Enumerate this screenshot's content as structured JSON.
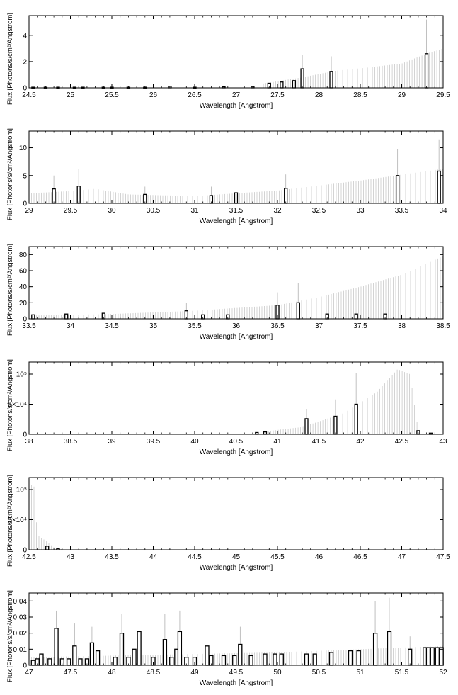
{
  "chart_data": [
    {
      "type": "bar",
      "xlabel": "Wavelength [Angstrom]",
      "ylabel": "Flux [Photons/s/cm²/Angstrom]",
      "xlim": [
        24.5,
        29.5
      ],
      "ylim": [
        0,
        5.5
      ],
      "xticks": [
        24.5,
        25,
        25.5,
        26,
        26.5,
        27,
        27.5,
        28,
        28.5,
        29,
        29.5
      ],
      "xtick_labels": [
        "24.5",
        "25",
        "25.5",
        "26",
        "26.5",
        "27",
        "27.5",
        "28",
        "28.5",
        "29",
        "29.5"
      ],
      "yticks": [
        0,
        2,
        4
      ],
      "ytick_labels": [
        "0",
        "2",
        "4"
      ],
      "bars": [
        {
          "x": 24.55,
          "y": 0.05
        },
        {
          "x": 24.7,
          "y": 0.05
        },
        {
          "x": 24.85,
          "y": 0.05
        },
        {
          "x": 25.05,
          "y": 0.05
        },
        {
          "x": 25.15,
          "y": 0.05
        },
        {
          "x": 25.4,
          "y": 0.05
        },
        {
          "x": 25.5,
          "y": 0.05
        },
        {
          "x": 25.7,
          "y": 0.05
        },
        {
          "x": 25.9,
          "y": 0.05
        },
        {
          "x": 26.2,
          "y": 0.12
        },
        {
          "x": 26.5,
          "y": 0.05
        },
        {
          "x": 26.85,
          "y": 0.08
        },
        {
          "x": 27.2,
          "y": 0.1
        },
        {
          "x": 27.4,
          "y": 0.35
        },
        {
          "x": 27.55,
          "y": 0.45
        },
        {
          "x": 27.7,
          "y": 0.55
        },
        {
          "x": 27.8,
          "y": 1.45
        },
        {
          "x": 28.15,
          "y": 1.25
        },
        {
          "x": 29.3,
          "y": 2.6
        }
      ],
      "band": [
        {
          "x": 27.3,
          "y": 0.3
        },
        {
          "x": 27.8,
          "y": 0.8
        },
        {
          "x": 28.2,
          "y": 1.3
        },
        {
          "x": 28.6,
          "y": 1.55
        },
        {
          "x": 29.0,
          "y": 1.85
        },
        {
          "x": 29.3,
          "y": 2.6
        },
        {
          "x": 29.5,
          "y": 3.0
        }
      ],
      "errors": [
        {
          "x": 27.8,
          "y": 2.5
        },
        {
          "x": 28.15,
          "y": 2.4
        },
        {
          "x": 29.3,
          "y": 5.2
        }
      ]
    },
    {
      "type": "bar",
      "xlabel": "Wavelength [Angstrom]",
      "ylabel": "Flux [Photons/s/cm²/Angstrom]",
      "xlim": [
        29,
        34
      ],
      "ylim": [
        0,
        13
      ],
      "xticks": [
        29,
        29.5,
        30,
        30.5,
        31,
        31.5,
        32,
        32.5,
        33,
        33.5,
        34
      ],
      "xtick_labels": [
        "29",
        "29.5",
        "30",
        "30.5",
        "31",
        "31.5",
        "32",
        "32.5",
        "33",
        "33.5",
        "34"
      ],
      "yticks": [
        0,
        5,
        10
      ],
      "ytick_labels": [
        "0",
        "5",
        "10"
      ],
      "bars": [
        {
          "x": 29.3,
          "y": 2.6
        },
        {
          "x": 29.6,
          "y": 3.1
        },
        {
          "x": 30.4,
          "y": 1.6
        },
        {
          "x": 31.2,
          "y": 1.4
        },
        {
          "x": 31.5,
          "y": 1.9
        },
        {
          "x": 32.1,
          "y": 2.7
        },
        {
          "x": 33.45,
          "y": 5.0
        },
        {
          "x": 33.95,
          "y": 5.8
        }
      ],
      "band": [
        {
          "x": 29.0,
          "y": 1.8
        },
        {
          "x": 29.5,
          "y": 2.2
        },
        {
          "x": 29.8,
          "y": 2.6
        },
        {
          "x": 30.2,
          "y": 1.6
        },
        {
          "x": 31.0,
          "y": 1.3
        },
        {
          "x": 32.0,
          "y": 2.3
        },
        {
          "x": 33.0,
          "y": 4.1
        },
        {
          "x": 34.0,
          "y": 6.2
        }
      ],
      "errors": [
        {
          "x": 29.3,
          "y": 5.0
        },
        {
          "x": 29.6,
          "y": 6.2
        },
        {
          "x": 30.4,
          "y": 3.0
        },
        {
          "x": 31.2,
          "y": 3.0
        },
        {
          "x": 31.5,
          "y": 3.6
        },
        {
          "x": 32.1,
          "y": 5.2
        },
        {
          "x": 33.45,
          "y": 9.8
        },
        {
          "x": 33.95,
          "y": 11.5
        }
      ]
    },
    {
      "type": "bar",
      "xlabel": "Wavelength [Angstrom]",
      "ylabel": "Flux [Photons/s/cm²/Angstrom]",
      "xlim": [
        33.5,
        38.5
      ],
      "ylim": [
        0,
        90
      ],
      "xticks": [
        33.5,
        34,
        34.5,
        35,
        35.5,
        36,
        36.5,
        37,
        37.5,
        38,
        38.5
      ],
      "xtick_labels": [
        "33.5",
        "34",
        "34.5",
        "35",
        "35.5",
        "36",
        "36.5",
        "37",
        "37.5",
        "38",
        "38.5"
      ],
      "yticks": [
        0,
        20,
        40,
        60,
        80
      ],
      "ytick_labels": [
        "0",
        "20",
        "40",
        "60",
        "80"
      ],
      "bars": [
        {
          "x": 33.55,
          "y": 5
        },
        {
          "x": 33.95,
          "y": 6
        },
        {
          "x": 34.4,
          "y": 7
        },
        {
          "x": 35.4,
          "y": 10
        },
        {
          "x": 35.6,
          "y": 5
        },
        {
          "x": 35.9,
          "y": 5
        },
        {
          "x": 36.5,
          "y": 17
        },
        {
          "x": 36.75,
          "y": 20
        },
        {
          "x": 37.1,
          "y": 6
        },
        {
          "x": 37.45,
          "y": 6
        },
        {
          "x": 37.8,
          "y": 6
        }
      ],
      "band": [
        {
          "x": 33.5,
          "y": 4
        },
        {
          "x": 34.5,
          "y": 6
        },
        {
          "x": 35.5,
          "y": 10
        },
        {
          "x": 36.5,
          "y": 17
        },
        {
          "x": 37.0,
          "y": 27
        },
        {
          "x": 37.5,
          "y": 40
        },
        {
          "x": 38.0,
          "y": 55
        },
        {
          "x": 38.5,
          "y": 78
        }
      ],
      "errors": [
        {
          "x": 35.4,
          "y": 20
        },
        {
          "x": 36.5,
          "y": 33
        },
        {
          "x": 36.75,
          "y": 45
        }
      ]
    },
    {
      "type": "bar",
      "xlabel": "Wavelength [Angstrom]",
      "ylabel": "Flux [Photons/s/cm²/Angstrom]",
      "xlim": [
        38,
        43
      ],
      "ylim": [
        0,
        120000
      ],
      "xticks": [
        38,
        38.5,
        39,
        39.5,
        40,
        40.5,
        41,
        41.5,
        42,
        42.5,
        43
      ],
      "xtick_labels": [
        "38",
        "38.5",
        "39",
        "39.5",
        "40",
        "40.5",
        "41",
        "41.5",
        "42",
        "42.5",
        "43"
      ],
      "yticks": [
        0,
        50000,
        100000
      ],
      "ytick_labels": [
        "0",
        "5×10⁴",
        "10⁵"
      ],
      "bars": [
        {
          "x": 40.75,
          "y": 3000
        },
        {
          "x": 40.85,
          "y": 4000
        },
        {
          "x": 41.35,
          "y": 26000
        },
        {
          "x": 41.7,
          "y": 30000
        },
        {
          "x": 41.95,
          "y": 50000
        },
        {
          "x": 42.7,
          "y": 6000
        },
        {
          "x": 42.85,
          "y": 2000
        }
      ],
      "band": [
        {
          "x": 40.8,
          "y": 4000
        },
        {
          "x": 41.3,
          "y": 12000
        },
        {
          "x": 41.8,
          "y": 35000
        },
        {
          "x": 42.2,
          "y": 70000
        },
        {
          "x": 42.45,
          "y": 108000
        },
        {
          "x": 42.6,
          "y": 100000
        },
        {
          "x": 42.7,
          "y": 6000
        }
      ],
      "errors": [
        {
          "x": 41.35,
          "y": 42000
        },
        {
          "x": 41.7,
          "y": 58000
        },
        {
          "x": 41.95,
          "y": 102000
        }
      ]
    },
    {
      "type": "bar",
      "xlabel": "Wavelength [Angstrom]",
      "ylabel": "Flux [Photons/s/cm²/Angstrom]",
      "xlim": [
        42.5,
        47.5
      ],
      "ylim": [
        0,
        120000
      ],
      "xticks": [
        42.5,
        43,
        43.5,
        44,
        44.5,
        45,
        45.5,
        46,
        46.5,
        47,
        47.5
      ],
      "xtick_labels": [
        "42.5",
        "43",
        "43.5",
        "44",
        "44.5",
        "45",
        "45.5",
        "46",
        "46.5",
        "47",
        "47.5"
      ],
      "yticks": [
        0,
        50000,
        100000
      ],
      "ytick_labels": [
        "0",
        "5×10⁴",
        "10⁵"
      ],
      "bars": [
        {
          "x": 42.72,
          "y": 6000
        },
        {
          "x": 42.85,
          "y": 2000
        }
      ],
      "band": [
        {
          "x": 42.5,
          "y": 110000
        },
        {
          "x": 42.56,
          "y": 105000
        },
        {
          "x": 42.6,
          "y": 25000
        },
        {
          "x": 42.7,
          "y": 15000
        },
        {
          "x": 42.8,
          "y": 4000
        },
        {
          "x": 42.9,
          "y": 1000
        }
      ],
      "errors": []
    },
    {
      "type": "bar",
      "xlabel": "Wavelength [Angstrom]",
      "ylabel": "Flux [Photons/s/cm²/Angstrom]",
      "xlim": [
        47,
        52
      ],
      "ylim": [
        0,
        0.045
      ],
      "xticks": [
        47,
        47.5,
        48,
        48.5,
        49,
        49.5,
        50,
        50.5,
        51,
        51.5,
        52
      ],
      "xtick_labels": [
        "47",
        "47.5",
        "48",
        "48.5",
        "49",
        "49.5",
        "50",
        "50.5",
        "51",
        "51.5",
        "52"
      ],
      "yticks": [
        0,
        0.01,
        0.02,
        0.03,
        0.04
      ],
      "ytick_labels": [
        "0",
        "0.01",
        "0.02",
        "0.03",
        "0.04"
      ],
      "bars": [
        {
          "x": 47.05,
          "y": 0.003
        },
        {
          "x": 47.1,
          "y": 0.004
        },
        {
          "x": 47.15,
          "y": 0.007
        },
        {
          "x": 47.25,
          "y": 0.004
        },
        {
          "x": 47.33,
          "y": 0.023
        },
        {
          "x": 47.4,
          "y": 0.004
        },
        {
          "x": 47.48,
          "y": 0.004
        },
        {
          "x": 47.55,
          "y": 0.012
        },
        {
          "x": 47.62,
          "y": 0.004
        },
        {
          "x": 47.7,
          "y": 0.004
        },
        {
          "x": 47.76,
          "y": 0.014
        },
        {
          "x": 47.83,
          "y": 0.009
        },
        {
          "x": 48.04,
          "y": 0.005
        },
        {
          "x": 48.12,
          "y": 0.02
        },
        {
          "x": 48.2,
          "y": 0.005
        },
        {
          "x": 48.27,
          "y": 0.01
        },
        {
          "x": 48.33,
          "y": 0.021
        },
        {
          "x": 48.5,
          "y": 0.005
        },
        {
          "x": 48.64,
          "y": 0.016
        },
        {
          "x": 48.72,
          "y": 0.005
        },
        {
          "x": 48.78,
          "y": 0.01
        },
        {
          "x": 48.82,
          "y": 0.021
        },
        {
          "x": 48.9,
          "y": 0.005
        },
        {
          "x": 49.0,
          "y": 0.005
        },
        {
          "x": 49.15,
          "y": 0.012
        },
        {
          "x": 49.2,
          "y": 0.006
        },
        {
          "x": 49.35,
          "y": 0.006
        },
        {
          "x": 49.48,
          "y": 0.006
        },
        {
          "x": 49.55,
          "y": 0.013
        },
        {
          "x": 49.68,
          "y": 0.006
        },
        {
          "x": 49.85,
          "y": 0.007
        },
        {
          "x": 49.97,
          "y": 0.007
        },
        {
          "x": 50.05,
          "y": 0.007
        },
        {
          "x": 50.35,
          "y": 0.007
        },
        {
          "x": 50.45,
          "y": 0.007
        },
        {
          "x": 50.65,
          "y": 0.008
        },
        {
          "x": 50.88,
          "y": 0.009
        },
        {
          "x": 50.98,
          "y": 0.009
        },
        {
          "x": 51.18,
          "y": 0.02
        },
        {
          "x": 51.35,
          "y": 0.021
        },
        {
          "x": 51.6,
          "y": 0.01
        },
        {
          "x": 51.78,
          "y": 0.011
        },
        {
          "x": 51.82,
          "y": 0.011
        },
        {
          "x": 51.87,
          "y": 0.011
        },
        {
          "x": 51.93,
          "y": 0.011
        },
        {
          "x": 51.98,
          "y": 0.011
        }
      ],
      "band": [
        {
          "x": 47.0,
          "y": 0.005
        },
        {
          "x": 48.0,
          "y": 0.006
        },
        {
          "x": 49.0,
          "y": 0.007
        },
        {
          "x": 50.0,
          "y": 0.008
        },
        {
          "x": 51.0,
          "y": 0.01
        },
        {
          "x": 52.0,
          "y": 0.012
        }
      ],
      "errors": [
        {
          "x": 47.33,
          "y": 0.034
        },
        {
          "x": 47.55,
          "y": 0.026
        },
        {
          "x": 47.76,
          "y": 0.024
        },
        {
          "x": 48.12,
          "y": 0.032
        },
        {
          "x": 48.33,
          "y": 0.034
        },
        {
          "x": 48.64,
          "y": 0.032
        },
        {
          "x": 48.82,
          "y": 0.034
        },
        {
          "x": 49.15,
          "y": 0.02
        },
        {
          "x": 49.55,
          "y": 0.024
        },
        {
          "x": 51.18,
          "y": 0.04
        },
        {
          "x": 51.35,
          "y": 0.042
        },
        {
          "x": 51.6,
          "y": 0.018
        }
      ]
    }
  ]
}
